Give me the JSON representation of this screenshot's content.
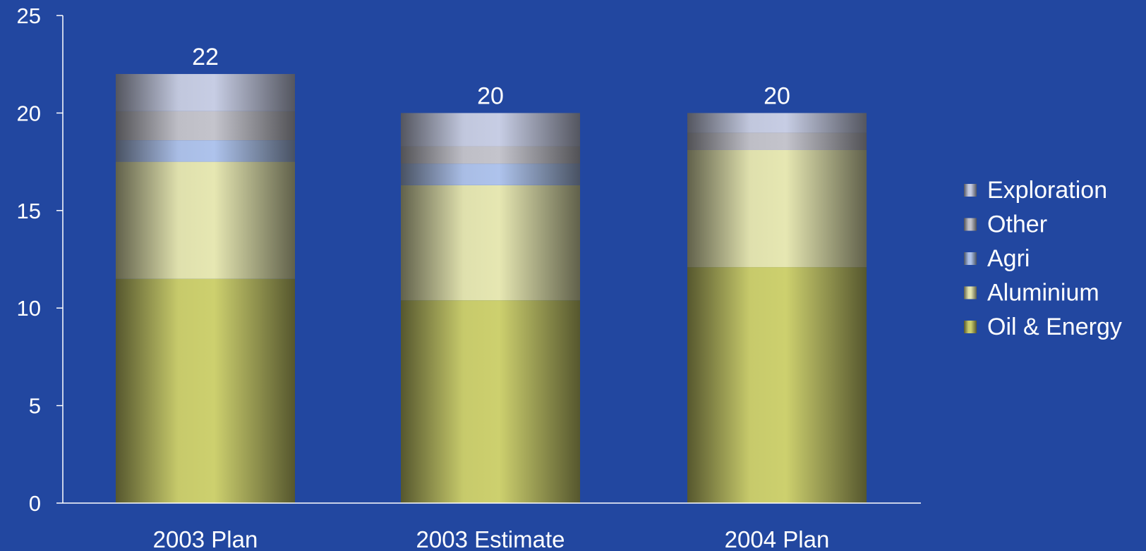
{
  "chart_data": {
    "type": "bar",
    "stacked": true,
    "categories": [
      "2003 Plan",
      "2003 Estimate",
      "2004 Plan"
    ],
    "series": [
      {
        "name": "Oil & Energy",
        "values": [
          11.5,
          10.4,
          12.1
        ],
        "color": "#cdd06e"
      },
      {
        "name": "Aluminium",
        "values": [
          6.0,
          5.9,
          6.0
        ],
        "color": "#e6e7b2"
      },
      {
        "name": "Agri",
        "values": [
          1.1,
          1.1,
          0.0
        ],
        "color": "#aec3ec"
      },
      {
        "name": "Other",
        "values": [
          1.5,
          0.9,
          0.9
        ],
        "color": "#c4c4cc"
      },
      {
        "name": "Exploration",
        "values": [
          1.9,
          1.7,
          1.0
        ],
        "color": "#c7cde4"
      }
    ],
    "totals": [
      "22",
      "20",
      "20"
    ],
    "ylim": [
      0,
      25
    ],
    "yticks": [
      "0",
      "5",
      "10",
      "15",
      "20",
      "25"
    ],
    "legend_order": [
      "Exploration",
      "Other",
      "Agri",
      "Aluminium",
      "Oil & Energy"
    ],
    "legend_position": "right",
    "grid": false,
    "title": "",
    "xlabel": "",
    "ylabel": "",
    "colors": {
      "background": "#2247a0",
      "axis": "#ffffff",
      "text": "#ffffff"
    }
  }
}
